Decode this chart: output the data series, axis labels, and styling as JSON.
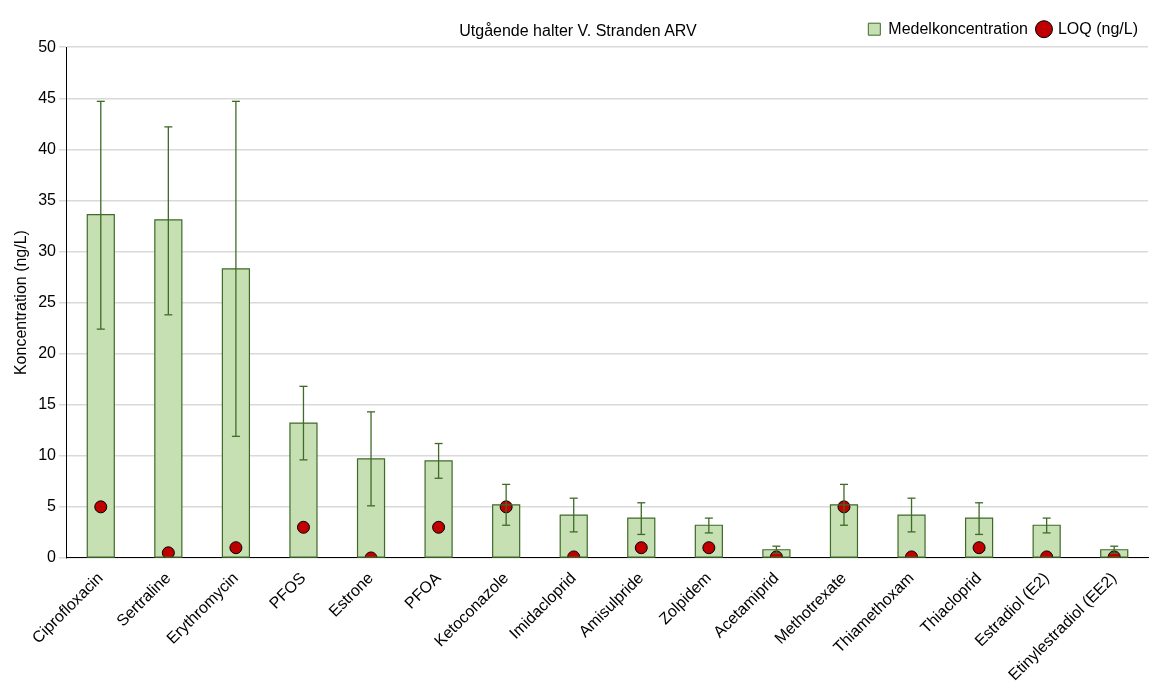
{
  "chart_data": {
    "type": "bar",
    "title": "Utgående halter V. Stranden ARV",
    "ylabel": "Koncentration (ng/L)",
    "categories": [
      "Ciprofloxacin",
      "Sertraline",
      "Erythromycin",
      "PFOS",
      "Estrone",
      "PFOA",
      "Ketoconazole",
      "Imidacloprid",
      "Amisulpride",
      "Zolpidem",
      "Acetamiprid",
      "Methotrexate",
      "Thiamethoxam",
      "Thiacloprid",
      "Estradiol (E2)",
      "Etinylestradiol (EE2)"
    ],
    "series": [
      {
        "name": "Medelkoncentration",
        "color": "#c6e0b4",
        "values": [
          33.6,
          33.1,
          28.3,
          13.2,
          9.7,
          9.5,
          5.2,
          4.2,
          3.9,
          3.2,
          0.8,
          5.2,
          4.2,
          3.9,
          3.2,
          0.8
        ],
        "errors": [
          [
            22.4,
            44.7
          ],
          [
            23.8,
            42.2
          ],
          [
            11.9,
            44.7
          ],
          [
            9.6,
            16.8
          ],
          [
            5.1,
            14.3
          ],
          [
            7.8,
            11.2
          ],
          [
            3.2,
            7.2
          ],
          [
            2.55,
            5.85
          ],
          [
            2.3,
            5.4
          ],
          [
            2.45,
            3.9
          ],
          [
            0.45,
            1.15
          ],
          [
            3.2,
            7.2
          ],
          [
            2.55,
            5.85
          ],
          [
            2.3,
            5.4
          ],
          [
            2.45,
            3.9
          ],
          [
            0.45,
            1.15
          ]
        ]
      },
      {
        "name": "LOQ (ng/L)",
        "type": "scatter",
        "color": "#c00000",
        "marker": "circle",
        "x": [
          "Ciprofloxacin",
          "Sertraline",
          "Erythromycin",
          "PFOS",
          "Estrone",
          "PFOA",
          "Ketoconazole",
          "Imidacloprid",
          "Amisulpride",
          "Zolpidem",
          "Acetamiprid",
          "Methotrexate",
          "Thiamethoxam",
          "Thiacloprid",
          "Estradiol (E2)",
          "Etinylestradiol (EE2)"
        ],
        "values": [
          5,
          0.5,
          1,
          3,
          0,
          3,
          5,
          0.1,
          1,
          1,
          0.1,
          5,
          0.1,
          1,
          0.1,
          0.1
        ]
      }
    ],
    "ylim": [
      0,
      50
    ],
    "yticks": [
      0,
      5,
      10,
      15,
      20,
      25,
      30,
      35,
      40,
      45,
      50
    ],
    "grid": "y",
    "legend": "top right"
  }
}
